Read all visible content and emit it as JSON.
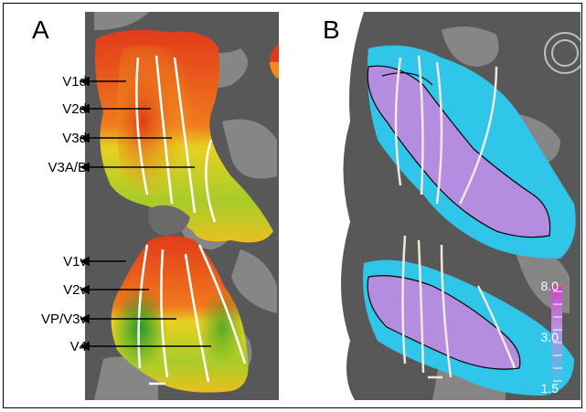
{
  "panels": [
    {
      "letter": "A",
      "labels": [
        "V1d",
        "V2d",
        "V3d",
        "V3A/B",
        "V1v",
        "V2v",
        "VP/V3v",
        "V4"
      ]
    },
    {
      "letter": "B",
      "colorbar": {
        "max": "8.0",
        "mid": "3.0",
        "min": "1.5"
      }
    }
  ],
  "colors": {
    "cortex_dark": "#4a4a4a",
    "cortex_light": "#8a8a8a",
    "phase_red": "#e8421e",
    "phase_yellow": "#f2e21a",
    "phase_green": "#2a9a2a",
    "activation_cyan": "#2ec8e8",
    "activation_magenta": "#b870d8",
    "border_white": "#ffffff"
  }
}
